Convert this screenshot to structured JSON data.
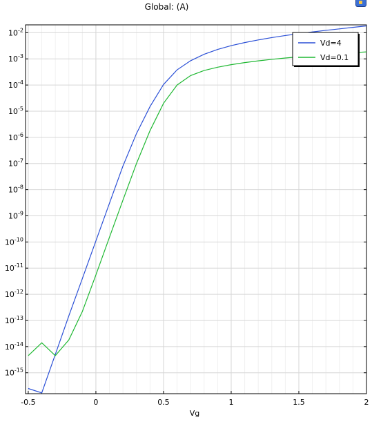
{
  "chart_data": {
    "type": "line",
    "title": "Global:  (A)",
    "xlabel": "Vg",
    "ylabel": "",
    "yscale": "log",
    "xlim": [
      -0.52,
      2.0
    ],
    "ylim_exp": [
      -15.8,
      -1.7
    ],
    "grid": true,
    "legend_position": "top-right",
    "x_ticks": [
      {
        "value": -0.5,
        "label": "-0.5"
      },
      {
        "value": 0,
        "label": "0"
      },
      {
        "value": 0.5,
        "label": "0.5"
      },
      {
        "value": 1,
        "label": "1"
      },
      {
        "value": 1.5,
        "label": "1.5"
      },
      {
        "value": 2,
        "label": "2"
      }
    ],
    "y_ticks": [
      {
        "exp": -2,
        "base": "10",
        "sup": "-2"
      },
      {
        "exp": -3,
        "base": "10",
        "sup": "-3"
      },
      {
        "exp": -4,
        "base": "10",
        "sup": "-4"
      },
      {
        "exp": -5,
        "base": "10",
        "sup": "-5"
      },
      {
        "exp": -6,
        "base": "10",
        "sup": "-6"
      },
      {
        "exp": -7,
        "base": "10",
        "sup": "-7"
      },
      {
        "exp": -8,
        "base": "10",
        "sup": "-8"
      },
      {
        "exp": -9,
        "base": "10",
        "sup": "-9"
      },
      {
        "exp": -10,
        "base": "10",
        "sup": "-10"
      },
      {
        "exp": -11,
        "base": "10",
        "sup": "-11"
      },
      {
        "exp": -12,
        "base": "10",
        "sup": "-12"
      },
      {
        "exp": -13,
        "base": "10",
        "sup": "-13"
      },
      {
        "exp": -14,
        "base": "10",
        "sup": "-14"
      },
      {
        "exp": -15,
        "base": "10",
        "sup": "-15"
      }
    ],
    "series": [
      {
        "name": "Vd=4",
        "color": "#2a4fd6",
        "x": [
          -0.5,
          -0.4,
          -0.3,
          -0.2,
          -0.1,
          0.0,
          0.1,
          0.2,
          0.3,
          0.4,
          0.5,
          0.6,
          0.7,
          0.8,
          0.9,
          1.0,
          1.1,
          1.2,
          1.3,
          1.4,
          1.5,
          1.6,
          1.7,
          1.8,
          1.9,
          2.0
        ],
        "y": [
          2.5e-16,
          1.7e-16,
          5e-15,
          1.5e-13,
          4e-12,
          1.1e-10,
          3e-09,
          8e-08,
          1.4e-06,
          1.5e-05,
          0.000105,
          0.00038,
          0.00085,
          0.0015,
          0.0023,
          0.0032,
          0.0042,
          0.0053,
          0.0065,
          0.0078,
          0.0092,
          0.0107,
          0.0123,
          0.014,
          0.016,
          0.0182
        ]
      },
      {
        "name": "Vd=0.1",
        "color": "#1fb832",
        "x": [
          -0.5,
          -0.4,
          -0.3,
          -0.2,
          -0.1,
          0.0,
          0.1,
          0.2,
          0.3,
          0.4,
          0.5,
          0.6,
          0.7,
          0.8,
          0.9,
          1.0,
          1.1,
          1.2,
          1.3,
          1.4,
          1.5,
          1.6,
          1.7,
          1.8,
          1.9,
          2.0
        ],
        "y": [
          4.5e-15,
          1.4e-14,
          4.5e-15,
          1.8e-14,
          2.2e-13,
          5.5e-12,
          1.5e-10,
          4e-09,
          1e-07,
          1.8e-06,
          2e-05,
          0.0001,
          0.00023,
          0.00036,
          0.00048,
          0.0006,
          0.00072,
          0.00084,
          0.00096,
          0.00108,
          0.0012,
          0.00132,
          0.00145,
          0.00158,
          0.00172,
          0.00185
        ]
      }
    ]
  }
}
